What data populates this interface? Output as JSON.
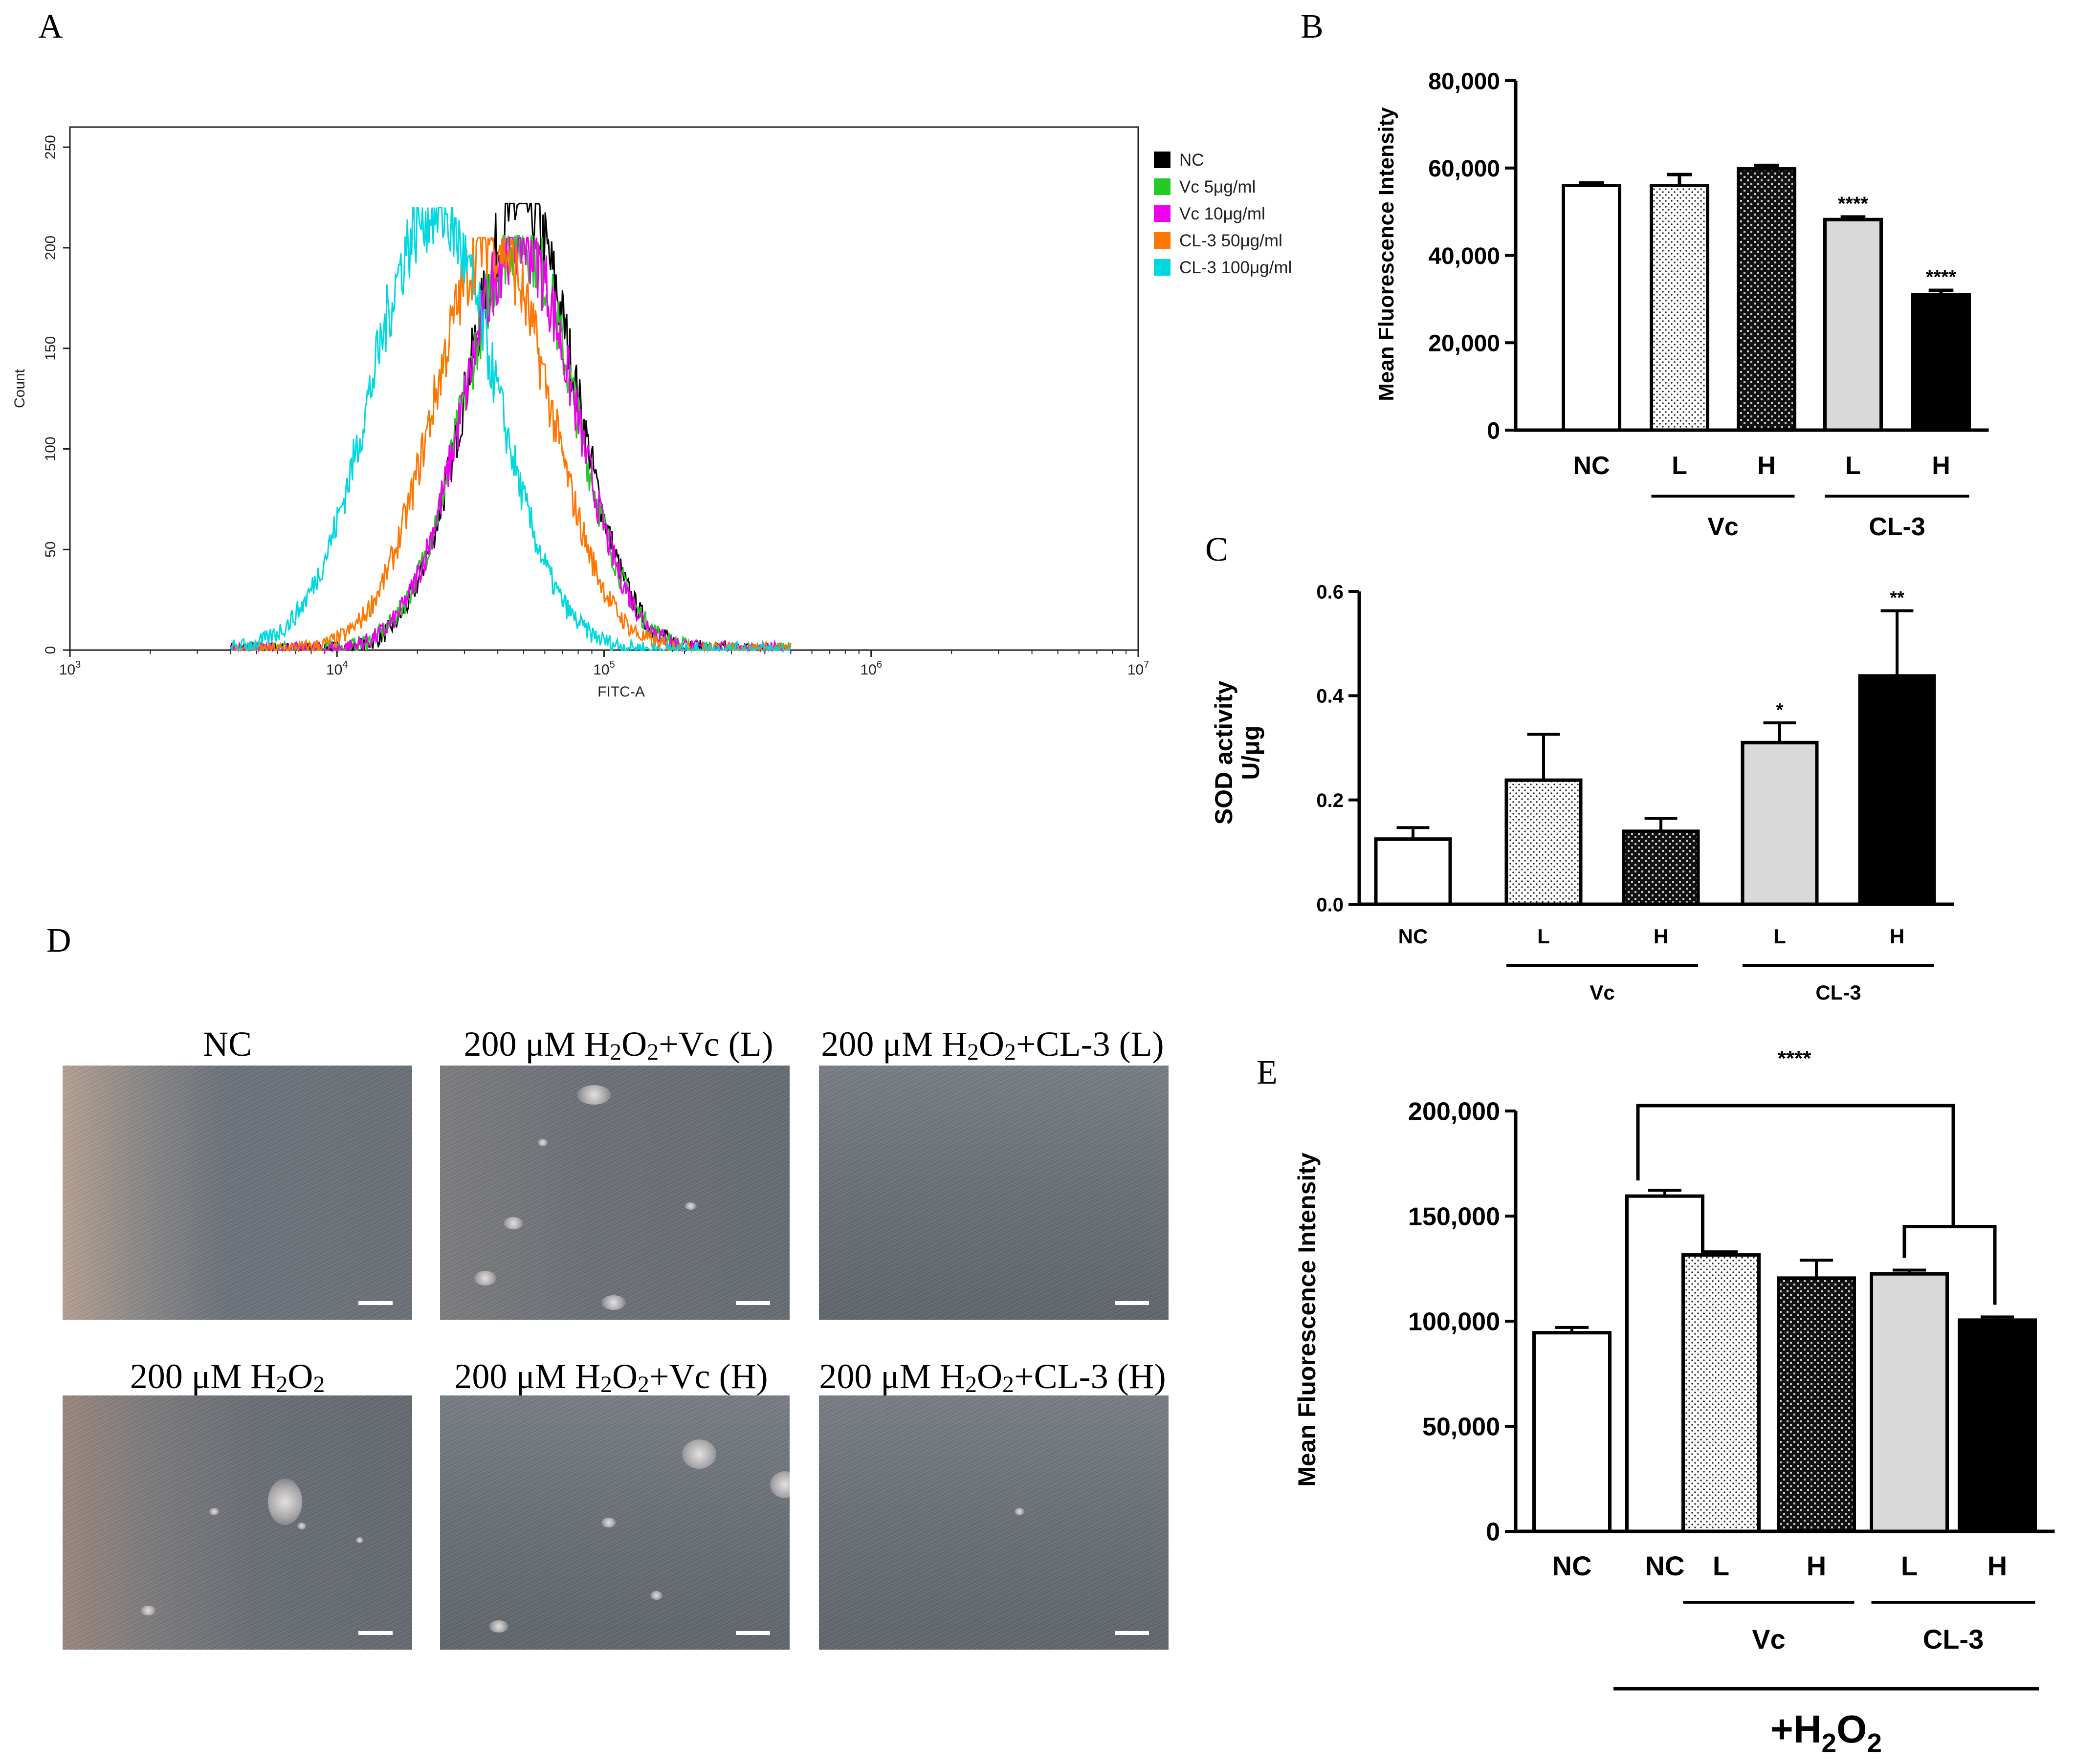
{
  "chart_data": [
    {
      "panel": "A",
      "type": "line",
      "xlabel": "FITC-A",
      "ylabel": "Count",
      "xscale": "log",
      "xlim": [
        1000,
        10000000
      ],
      "ylim": [
        0,
        260
      ],
      "x_ticks": [
        {
          "value": 1000,
          "base": "10",
          "exp": "3"
        },
        {
          "value": 10000,
          "base": "10",
          "exp": "4"
        },
        {
          "value": 100000,
          "base": "10",
          "exp": "5"
        },
        {
          "value": 1000000,
          "base": "10",
          "exp": "6"
        },
        {
          "value": 10000000,
          "base": "10",
          "exp": "7"
        }
      ],
      "y_ticks": [
        "0",
        "50",
        "100",
        "150",
        "200",
        "250"
      ],
      "legend": "top-right",
      "series": [
        {
          "name": "NC",
          "color": "#000000",
          "peak_x": 49000,
          "peak_y": 222,
          "width": 0.2
        },
        {
          "name": "Vc 5μg/ml",
          "color": "#22cc22",
          "peak_x": 48000,
          "peak_y": 206,
          "width": 0.205
        },
        {
          "name": "Vc 10μg/ml",
          "color": "#ee00ee",
          "peak_x": 48000,
          "peak_y": 205,
          "width": 0.205
        },
        {
          "name": "CL-3 50μg/ml",
          "color": "#ff7700",
          "peak_x": 38000,
          "peak_y": 205,
          "width": 0.215
        },
        {
          "name": "CL-3 100μg/ml",
          "color": "#00d8e0",
          "peak_x": 23000,
          "peak_y": 220,
          "width": 0.23
        }
      ]
    },
    {
      "panel": "B",
      "type": "bar",
      "ylabel": "Mean Fluorescence Intensity",
      "ylim": [
        0,
        80000
      ],
      "y_ticks": [
        "0",
        "20,000",
        "40,000",
        "60,000",
        "80,000"
      ],
      "categories": [
        "NC",
        "L",
        "H",
        "L",
        "H"
      ],
      "values": [
        56000,
        56000,
        59800,
        48200,
        31000
      ],
      "errors": [
        600,
        2500,
        800,
        600,
        1000
      ],
      "significance": [
        "",
        "",
        "",
        "****",
        "****"
      ],
      "groups": [
        {
          "label": "Vc",
          "from": 1,
          "to": 2
        },
        {
          "label": "CL-3",
          "from": 3,
          "to": 4
        }
      ]
    },
    {
      "panel": "C",
      "type": "bar",
      "ylabel": [
        "SOD activity",
        "U/μg"
      ],
      "ylim": [
        0,
        0.6
      ],
      "y_ticks": [
        "0.0",
        "0.2",
        "0.4",
        "0.6"
      ],
      "categories": [
        "NC",
        "L",
        "H",
        "L",
        "H"
      ],
      "values": [
        0.125,
        0.238,
        0.14,
        0.31,
        0.438
      ],
      "errors": [
        0.022,
        0.088,
        0.025,
        0.038,
        0.125
      ],
      "significance": [
        "",
        "",
        "",
        "*",
        "**"
      ],
      "groups": [
        {
          "label": "Vc",
          "from": 1,
          "to": 2
        },
        {
          "label": "CL-3",
          "from": 3,
          "to": 4
        }
      ]
    },
    {
      "panel": "E",
      "type": "bar",
      "ylabel": "Mean Fluorescence Intensity",
      "ylim": [
        0,
        200000
      ],
      "y_ticks": [
        "0",
        "50,000",
        "100,000",
        "150,000",
        "200,000"
      ],
      "categories": [
        "NC",
        "NC",
        "L",
        "H",
        "L",
        "H"
      ],
      "values": [
        94500,
        159500,
        131500,
        120500,
        122500,
        100500
      ],
      "errors": [
        2500,
        2800,
        1500,
        8500,
        1800,
        1500
      ],
      "groups": [
        {
          "label": "Vc",
          "from": 2,
          "to": 3
        },
        {
          "label": "CL-3",
          "from": 4,
          "to": 5
        }
      ],
      "treatment_label": "+H",
      "treatment_sub_1": "2",
      "treatment_mid": "O",
      "treatment_sub_2": "2",
      "significance_bracket": "****"
    }
  ],
  "panel_labels": {
    "a": "A",
    "b": "B",
    "c": "C",
    "d": "D",
    "e": "E"
  },
  "micrographs": [
    {
      "pre": "NC",
      "sub1": "",
      "mid": "",
      "sub2": "",
      "post": ""
    },
    {
      "pre": "200 μM H",
      "sub1": "2",
      "mid": "O",
      "sub2": "2",
      "post": "+Vc (L)"
    },
    {
      "pre": "200 μM H",
      "sub1": "2",
      "mid": "O",
      "sub2": "2",
      "post": "+CL-3 (L)"
    },
    {
      "pre": "200 μM H",
      "sub1": "2",
      "mid": "O",
      "sub2": "2",
      "post": ""
    },
    {
      "pre": "200 μM H",
      "sub1": "2",
      "mid": "O",
      "sub2": "2",
      "post": "+Vc (H)"
    },
    {
      "pre": "200 μM H",
      "sub1": "2",
      "mid": "O",
      "sub2": "2",
      "post": "+CL-3 (H)"
    }
  ]
}
